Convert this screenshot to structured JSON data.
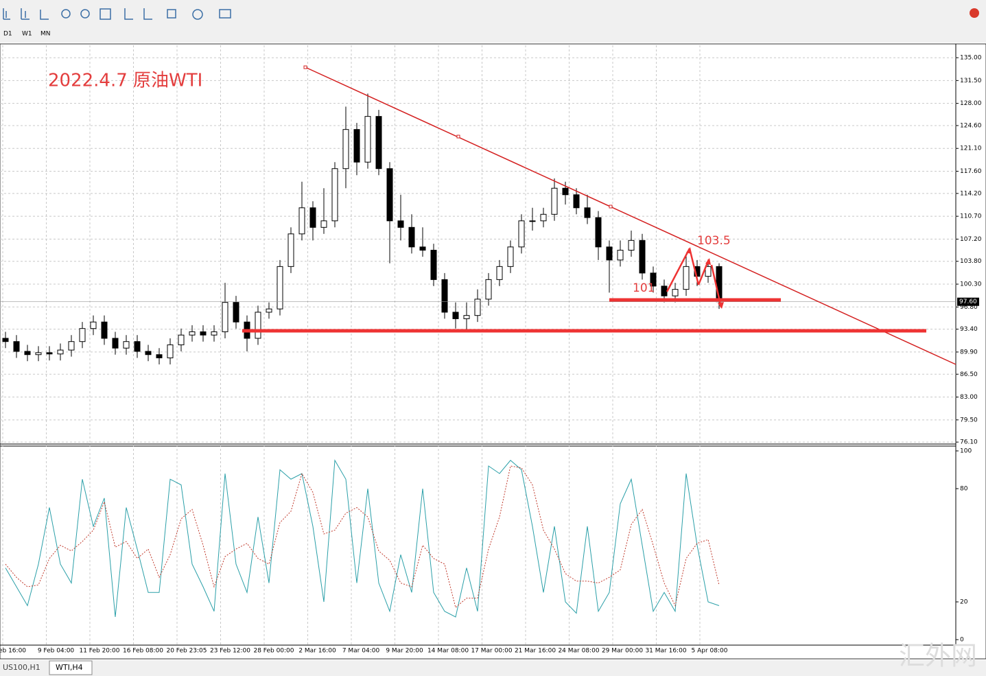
{
  "toolbar": {
    "periods": [
      "D1",
      "W1",
      "MN"
    ]
  },
  "tabs": [
    "US100,H1",
    "WTI,H4"
  ],
  "watermark": "汇外网",
  "chart_data": [
    {
      "type": "candlestick",
      "title": "2022.4.7 原油WTI",
      "time_labels": [
        "eb 16:00",
        "9 Feb 04:00",
        "11 Feb 20:00",
        "16 Feb 08:00",
        "20 Feb 23:05",
        "23 Feb 12:00",
        "28 Feb 00:00",
        "2 Mar 16:00",
        "7 Mar 04:00",
        "9 Mar 20:00",
        "14 Mar 08:00",
        "17 Mar 00:00",
        "21 Mar 16:00",
        "24 Mar 08:00",
        "29 Mar 00:00",
        "31 Mar 16:00",
        "5 Apr 08:00"
      ],
      "open": [
        92,
        91.5,
        90,
        89.5,
        89.8,
        89.6,
        90.2,
        91.5,
        93.5,
        94.5,
        92,
        90.5,
        91.5,
        90,
        89.5,
        89,
        91,
        92.5,
        93,
        92.5,
        93,
        97.5,
        94.5,
        92,
        96,
        96.5,
        103,
        108,
        112,
        109,
        110,
        118,
        124,
        119,
        126,
        118,
        110,
        109,
        106,
        105.5,
        101,
        96,
        95,
        95.5,
        98,
        101,
        103,
        106,
        110,
        110,
        111,
        115,
        114,
        112,
        110.5,
        106,
        104,
        105.5,
        107,
        102,
        100,
        98.5,
        99.5,
        103,
        101.5,
        103
      ],
      "high": [
        93,
        92.5,
        91,
        90.8,
        90.8,
        91.2,
        92.5,
        94.5,
        95.5,
        95.5,
        93,
        92.5,
        92.5,
        91,
        90.5,
        92,
        93.5,
        94,
        94,
        94,
        100.5,
        98.5,
        95.5,
        97,
        97.5,
        104,
        109,
        116,
        113,
        115,
        119,
        127.5,
        125,
        129.5,
        127,
        119,
        114,
        111,
        109,
        106.5,
        102,
        97.5,
        97.5,
        99.5,
        102,
        104,
        107,
        111,
        112,
        112,
        116.5,
        116,
        115,
        114,
        111.5,
        107,
        107,
        108.5,
        108,
        103,
        101,
        100.5,
        105,
        104,
        104,
        103.5
      ],
      "low": [
        90.5,
        89,
        88.5,
        88.5,
        88.6,
        88.6,
        89.2,
        90.5,
        92.5,
        91,
        89.5,
        89.5,
        89,
        88.5,
        88,
        88,
        90,
        91.5,
        91.5,
        91.5,
        92,
        93.5,
        90,
        91,
        95,
        95.5,
        102,
        107,
        107,
        108,
        109,
        115,
        117,
        118,
        117,
        103.5,
        107,
        105,
        104.5,
        100,
        95,
        93.5,
        93,
        94.5,
        97,
        100,
        102,
        105,
        108.5,
        109,
        110,
        112.5,
        111,
        109.5,
        104,
        99,
        103,
        104.5,
        101,
        99,
        97.5,
        97.5,
        98.5,
        100,
        100.5,
        96.5
      ],
      "close": [
        91.5,
        90,
        89.5,
        89.8,
        89.6,
        90.2,
        91.5,
        93.5,
        94.5,
        92,
        90.5,
        91.5,
        90,
        89.5,
        89,
        91,
        92.5,
        93,
        92.5,
        93,
        97.5,
        94.5,
        92,
        96,
        96.5,
        103,
        108,
        112,
        109,
        110,
        118,
        124,
        119,
        126,
        118,
        110,
        109,
        106,
        105.5,
        101,
        96,
        95,
        95.5,
        98,
        101,
        103,
        106,
        110,
        110,
        111,
        115,
        114,
        112,
        110.5,
        106,
        104,
        105.5,
        107,
        102,
        100,
        98.5,
        99.5,
        103,
        101.5,
        103,
        97.6
      ],
      "colors": {
        "up": "#ffffff",
        "down": "#000000"
      },
      "ylim": [
        75.8,
        136.9
      ],
      "yticks": [
        {
          "value": 135,
          "label": "135.00"
        },
        {
          "value": 131.5,
          "label": "131.50"
        },
        {
          "value": 128,
          "label": "128.00"
        },
        {
          "value": 124.6,
          "label": "124.60"
        },
        {
          "value": 121.1,
          "label": "121.10"
        },
        {
          "value": 117.6,
          "label": "117.60"
        },
        {
          "value": 114.2,
          "label": "114.20"
        },
        {
          "value": 110.7,
          "label": "110.70"
        },
        {
          "value": 107.2,
          "label": "107.20"
        },
        {
          "value": 103.8,
          "label": "103.80"
        },
        {
          "value": 100.3,
          "label": "100.30"
        },
        {
          "value": 96.8,
          "label": "96.80"
        },
        {
          "value": 93.4,
          "label": "93.40"
        },
        {
          "value": 89.9,
          "label": "89.90"
        },
        {
          "value": 86.5,
          "label": "86.50"
        },
        {
          "value": 83,
          "label": "83.00"
        },
        {
          "value": 79.5,
          "label": "79.50"
        },
        {
          "value": 76.1,
          "label": "76.10"
        }
      ],
      "current_price": {
        "value": 97.6,
        "label": "97.60"
      },
      "annotations": [
        "103.5",
        "101"
      ],
      "grid": true
    },
    {
      "type": "line",
      "series": [
        {
          "color": "#2a9fa8",
          "style": "solid",
          "values": [
            38,
            28,
            18,
            40,
            70,
            40,
            30,
            85,
            60,
            75,
            12,
            70,
            48,
            25,
            25,
            85,
            82,
            40,
            28,
            15,
            88,
            40,
            25,
            65,
            30,
            90,
            85,
            88,
            60,
            20,
            95,
            85,
            30,
            80,
            30,
            15,
            45,
            25,
            80,
            25,
            15,
            12,
            38,
            15,
            92,
            88,
            95,
            90,
            60,
            25,
            60,
            20,
            14,
            60,
            15,
            25,
            72,
            85,
            50,
            15,
            25,
            15,
            88,
            50,
            20,
            18
          ]
        },
        {
          "color": "#c0392b",
          "style": "dashed",
          "values": [
            40,
            33,
            28,
            29,
            43,
            50,
            47,
            52,
            58,
            73,
            49,
            52,
            43,
            48,
            33,
            45,
            64,
            69,
            50,
            28,
            44,
            48,
            51,
            43,
            40,
            62,
            68,
            88,
            78,
            56,
            58,
            67,
            70,
            65,
            47,
            42,
            30,
            28,
            50,
            43,
            40,
            17,
            22,
            22,
            48,
            65,
            92,
            91,
            82,
            58,
            48,
            35,
            31,
            31,
            30,
            33,
            37,
            61,
            69,
            50,
            30,
            18,
            43,
            51,
            53,
            29
          ]
        }
      ],
      "ylim": [
        0,
        100
      ],
      "yticks": [
        100,
        80,
        20,
        0
      ]
    }
  ]
}
